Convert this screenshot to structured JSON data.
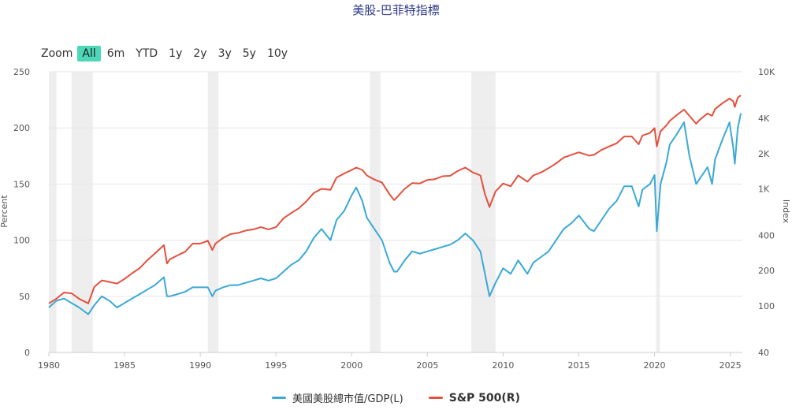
{
  "title": "美股-巴菲特指標",
  "zoom": {
    "label": "Zoom",
    "buttons": [
      "All",
      "6m",
      "YTD",
      "1y",
      "2y",
      "3y",
      "5y",
      "10y"
    ],
    "active": "All"
  },
  "colors": {
    "left_series": "#3aa9d6",
    "right_series": "#e4503d",
    "recession_band": "#eeeeee",
    "grid": "#e6e6e6",
    "axis_text": "#555555"
  },
  "chart_data": {
    "type": "line",
    "title": "美股-巴菲特指標",
    "y_left": {
      "label": "Percent",
      "range": [
        0,
        250
      ],
      "ticks": [
        "0",
        "50",
        "100",
        "150",
        "200",
        "250"
      ]
    },
    "y_right": {
      "label": "Index",
      "scale": "log",
      "range": [
        40,
        10000
      ],
      "ticks": [
        "40",
        "100",
        "200",
        "400",
        "1K",
        "2K",
        "4K",
        "10K"
      ]
    },
    "x": {
      "range": [
        1980,
        2025.8
      ],
      "ticks": [
        "1980",
        "1985",
        "1990",
        "1995",
        "2000",
        "2005",
        "2010",
        "2015",
        "2020",
        "2025"
      ]
    },
    "recession_bands": [
      [
        1980.0,
        1980.5
      ],
      [
        1981.5,
        1982.9
      ],
      [
        1990.5,
        1991.2
      ],
      [
        2001.2,
        2001.9
      ],
      [
        2007.9,
        2009.5
      ],
      [
        2020.1,
        2020.35
      ]
    ],
    "legend_position": "bottom-center",
    "grid": true,
    "series": [
      {
        "name": "美國美股總市值/GDP(L)",
        "axis": "left",
        "points": [
          [
            1980.0,
            40
          ],
          [
            1980.5,
            46
          ],
          [
            1981.0,
            48
          ],
          [
            1981.5,
            44
          ],
          [
            1982.0,
            40
          ],
          [
            1982.6,
            34
          ],
          [
            1983.0,
            42
          ],
          [
            1983.5,
            50
          ],
          [
            1984.0,
            46
          ],
          [
            1984.5,
            40
          ],
          [
            1985.0,
            44
          ],
          [
            1985.5,
            48
          ],
          [
            1986.0,
            52
          ],
          [
            1986.5,
            56
          ],
          [
            1987.0,
            60
          ],
          [
            1987.6,
            67
          ],
          [
            1987.8,
            50
          ],
          [
            1988.0,
            50
          ],
          [
            1988.5,
            52
          ],
          [
            1989.0,
            54
          ],
          [
            1989.5,
            58
          ],
          [
            1990.0,
            58
          ],
          [
            1990.5,
            58
          ],
          [
            1990.8,
            50
          ],
          [
            1991.0,
            55
          ],
          [
            1991.5,
            58
          ],
          [
            1992.0,
            60
          ],
          [
            1992.5,
            60
          ],
          [
            1993.0,
            62
          ],
          [
            1993.5,
            64
          ],
          [
            1994.0,
            66
          ],
          [
            1994.5,
            64
          ],
          [
            1995.0,
            66
          ],
          [
            1995.5,
            72
          ],
          [
            1996.0,
            78
          ],
          [
            1996.5,
            82
          ],
          [
            1997.0,
            90
          ],
          [
            1997.5,
            102
          ],
          [
            1998.0,
            110
          ],
          [
            1998.6,
            100
          ],
          [
            1999.0,
            118
          ],
          [
            1999.5,
            126
          ],
          [
            2000.0,
            140
          ],
          [
            2000.3,
            147
          ],
          [
            2000.7,
            135
          ],
          [
            2001.0,
            120
          ],
          [
            2001.5,
            110
          ],
          [
            2002.0,
            100
          ],
          [
            2002.5,
            80
          ],
          [
            2002.8,
            72
          ],
          [
            2003.0,
            72
          ],
          [
            2003.5,
            82
          ],
          [
            2004.0,
            90
          ],
          [
            2004.5,
            88
          ],
          [
            2005.0,
            90
          ],
          [
            2005.5,
            92
          ],
          [
            2006.0,
            94
          ],
          [
            2006.5,
            96
          ],
          [
            2007.0,
            100
          ],
          [
            2007.5,
            106
          ],
          [
            2008.0,
            100
          ],
          [
            2008.5,
            90
          ],
          [
            2008.8,
            70
          ],
          [
            2009.1,
            50
          ],
          [
            2009.5,
            62
          ],
          [
            2010.0,
            75
          ],
          [
            2010.5,
            70
          ],
          [
            2011.0,
            82
          ],
          [
            2011.6,
            70
          ],
          [
            2012.0,
            80
          ],
          [
            2012.5,
            85
          ],
          [
            2013.0,
            90
          ],
          [
            2013.5,
            100
          ],
          [
            2014.0,
            110
          ],
          [
            2014.5,
            115
          ],
          [
            2015.0,
            122
          ],
          [
            2015.7,
            110
          ],
          [
            2016.0,
            108
          ],
          [
            2016.5,
            118
          ],
          [
            2017.0,
            128
          ],
          [
            2017.5,
            135
          ],
          [
            2018.0,
            148
          ],
          [
            2018.5,
            148
          ],
          [
            2018.95,
            130
          ],
          [
            2019.2,
            145
          ],
          [
            2019.7,
            150
          ],
          [
            2020.0,
            158
          ],
          [
            2020.15,
            108
          ],
          [
            2020.4,
            150
          ],
          [
            2020.8,
            170
          ],
          [
            2021.0,
            185
          ],
          [
            2021.5,
            195
          ],
          [
            2021.95,
            205
          ],
          [
            2022.3,
            175
          ],
          [
            2022.75,
            150
          ],
          [
            2023.0,
            155
          ],
          [
            2023.5,
            165
          ],
          [
            2023.8,
            150
          ],
          [
            2024.0,
            172
          ],
          [
            2024.5,
            190
          ],
          [
            2024.95,
            205
          ],
          [
            2025.2,
            182
          ],
          [
            2025.3,
            168
          ],
          [
            2025.5,
            200
          ],
          [
            2025.7,
            213
          ]
        ]
      },
      {
        "name": "S&P 500(R)",
        "axis": "right",
        "points": [
          [
            1980.0,
            105
          ],
          [
            1980.5,
            115
          ],
          [
            1981.0,
            130
          ],
          [
            1981.5,
            128
          ],
          [
            1982.0,
            115
          ],
          [
            1982.6,
            105
          ],
          [
            1983.0,
            145
          ],
          [
            1983.5,
            165
          ],
          [
            1984.0,
            160
          ],
          [
            1984.5,
            155
          ],
          [
            1985.0,
            170
          ],
          [
            1985.5,
            190
          ],
          [
            1986.0,
            210
          ],
          [
            1986.5,
            245
          ],
          [
            1987.0,
            280
          ],
          [
            1987.6,
            330
          ],
          [
            1987.8,
            230
          ],
          [
            1988.0,
            250
          ],
          [
            1988.5,
            270
          ],
          [
            1989.0,
            290
          ],
          [
            1989.5,
            340
          ],
          [
            1990.0,
            340
          ],
          [
            1990.5,
            360
          ],
          [
            1990.8,
            300
          ],
          [
            1991.0,
            340
          ],
          [
            1991.5,
            380
          ],
          [
            1992.0,
            410
          ],
          [
            1992.5,
            420
          ],
          [
            1993.0,
            440
          ],
          [
            1993.5,
            450
          ],
          [
            1994.0,
            470
          ],
          [
            1994.5,
            450
          ],
          [
            1995.0,
            470
          ],
          [
            1995.5,
            560
          ],
          [
            1996.0,
            620
          ],
          [
            1996.5,
            680
          ],
          [
            1997.0,
            780
          ],
          [
            1997.5,
            920
          ],
          [
            1998.0,
            1000
          ],
          [
            1998.6,
            980
          ],
          [
            1999.0,
            1250
          ],
          [
            1999.5,
            1350
          ],
          [
            2000.0,
            1450
          ],
          [
            2000.3,
            1520
          ],
          [
            2000.7,
            1450
          ],
          [
            2001.0,
            1300
          ],
          [
            2001.5,
            1200
          ],
          [
            2002.0,
            1130
          ],
          [
            2002.5,
            900
          ],
          [
            2002.8,
            800
          ],
          [
            2003.0,
            850
          ],
          [
            2003.5,
            1000
          ],
          [
            2004.0,
            1120
          ],
          [
            2004.5,
            1110
          ],
          [
            2005.0,
            1190
          ],
          [
            2005.5,
            1210
          ],
          [
            2006.0,
            1280
          ],
          [
            2006.5,
            1290
          ],
          [
            2007.0,
            1420
          ],
          [
            2007.5,
            1520
          ],
          [
            2008.0,
            1380
          ],
          [
            2008.5,
            1300
          ],
          [
            2008.8,
            900
          ],
          [
            2009.1,
            700
          ],
          [
            2009.5,
            950
          ],
          [
            2010.0,
            1110
          ],
          [
            2010.5,
            1050
          ],
          [
            2011.0,
            1300
          ],
          [
            2011.6,
            1150
          ],
          [
            2012.0,
            1300
          ],
          [
            2012.5,
            1380
          ],
          [
            2013.0,
            1500
          ],
          [
            2013.5,
            1650
          ],
          [
            2014.0,
            1850
          ],
          [
            2014.5,
            1950
          ],
          [
            2015.0,
            2050
          ],
          [
            2015.7,
            1920
          ],
          [
            2016.0,
            1950
          ],
          [
            2016.5,
            2150
          ],
          [
            2017.0,
            2300
          ],
          [
            2017.5,
            2450
          ],
          [
            2018.0,
            2800
          ],
          [
            2018.5,
            2800
          ],
          [
            2018.95,
            2400
          ],
          [
            2019.2,
            2850
          ],
          [
            2019.7,
            3000
          ],
          [
            2020.0,
            3300
          ],
          [
            2020.15,
            2300
          ],
          [
            2020.4,
            3100
          ],
          [
            2020.8,
            3500
          ],
          [
            2021.0,
            3800
          ],
          [
            2021.5,
            4300
          ],
          [
            2021.95,
            4750
          ],
          [
            2022.3,
            4200
          ],
          [
            2022.75,
            3600
          ],
          [
            2023.0,
            3900
          ],
          [
            2023.5,
            4400
          ],
          [
            2023.8,
            4200
          ],
          [
            2024.0,
            4800
          ],
          [
            2024.5,
            5400
          ],
          [
            2024.95,
            5900
          ],
          [
            2025.2,
            5600
          ],
          [
            2025.3,
            5000
          ],
          [
            2025.5,
            6000
          ],
          [
            2025.7,
            6300
          ]
        ]
      }
    ]
  }
}
